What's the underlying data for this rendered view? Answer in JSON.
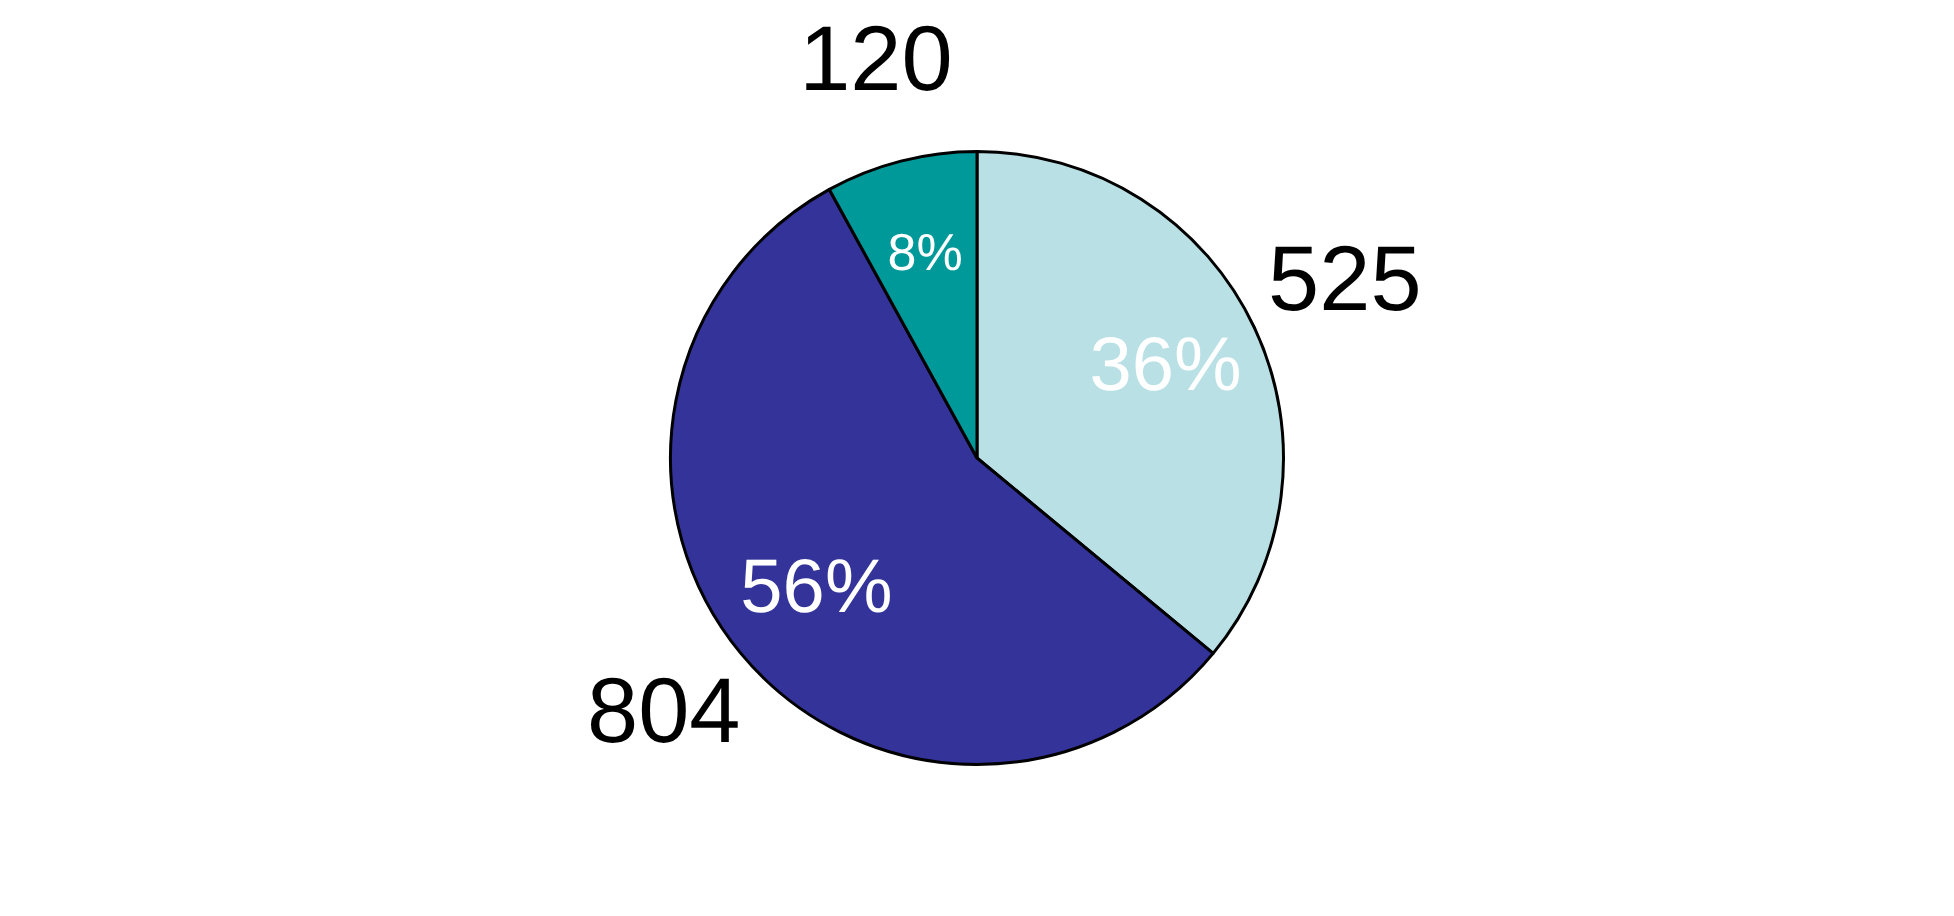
{
  "chart_data": {
    "type": "pie",
    "categories": [
      null,
      null,
      null
    ],
    "values": [
      36,
      56,
      8
    ],
    "colors": [
      "#b9e0e4",
      "#333399",
      "#009999"
    ],
    "value_labels": [
      "36%",
      "56%",
      "8%"
    ],
    "annotations": [
      "525",
      "804",
      "120"
    ],
    "legend": false
  }
}
